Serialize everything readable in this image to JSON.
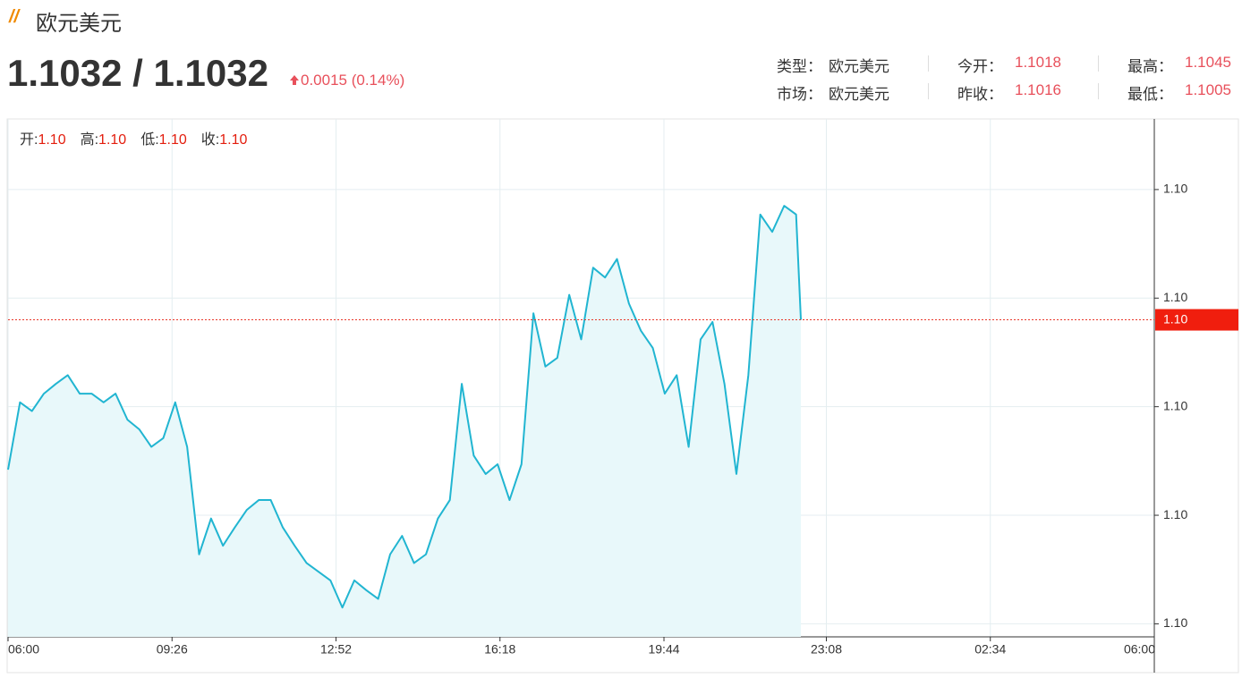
{
  "header": {
    "title": "欧元美元",
    "price": "1.1032 / 1.1032",
    "change": "0.0015 (0.14%)",
    "info": [
      [
        {
          "label": "类型：",
          "value": "欧元美元"
        },
        {
          "label": "今开：",
          "value": "1.1018"
        },
        {
          "label": "最高：",
          "value": "1.1045"
        }
      ],
      [
        {
          "label": "市场：",
          "value": "欧元美元"
        },
        {
          "label": "昨收：",
          "value": "1.1016"
        },
        {
          "label": "最低：",
          "value": "1.1005"
        }
      ]
    ]
  },
  "ohlc": [
    {
      "label": "开:",
      "value": "1.10"
    },
    {
      "label": "高:",
      "value": "1.10"
    },
    {
      "label": "低:",
      "value": "1.10"
    },
    {
      "label": "收:",
      "value": "1.10"
    }
  ],
  "chart_data": {
    "type": "area",
    "color": "#21b5d1",
    "fill": "#e8f8fa",
    "grid": true,
    "x": [
      "06:00",
      "06:15",
      "06:30",
      "06:45",
      "07:00",
      "07:15",
      "07:30",
      "07:45",
      "08:00",
      "08:15",
      "08:30",
      "08:45",
      "09:00",
      "09:15",
      "09:30",
      "09:45",
      "10:00",
      "10:15",
      "10:30",
      "10:45",
      "11:00",
      "11:15",
      "11:30",
      "11:45",
      "12:00",
      "12:15",
      "12:30",
      "12:45",
      "13:00",
      "13:15",
      "13:30",
      "13:45",
      "14:00",
      "14:15",
      "14:30",
      "14:45",
      "15:00",
      "15:15",
      "15:30",
      "15:45",
      "16:00",
      "16:15",
      "16:30",
      "16:45",
      "17:00",
      "17:15",
      "17:30",
      "17:45",
      "18:00",
      "18:15",
      "18:30",
      "18:45",
      "19:00",
      "19:15",
      "19:30",
      "19:45",
      "20:00",
      "20:15",
      "20:30",
      "20:45",
      "21:00",
      "21:15",
      "21:30",
      "21:45",
      "22:00",
      "22:15",
      "22:30",
      "22:36"
    ],
    "values": [
      1.10182,
      1.10244,
      1.10236,
      1.10252,
      1.10261,
      1.10269,
      1.10252,
      1.10252,
      1.10244,
      1.10252,
      1.10228,
      1.10219,
      1.10203,
      1.10211,
      1.10244,
      1.10203,
      1.10104,
      1.10137,
      1.10112,
      1.10129,
      1.10145,
      1.10154,
      1.10154,
      1.10129,
      1.10112,
      1.10096,
      1.10088,
      1.1008,
      1.10055,
      1.1008,
      1.10071,
      1.10063,
      1.10104,
      1.10121,
      1.10096,
      1.10104,
      1.10137,
      1.10154,
      1.10261,
      1.10195,
      1.10178,
      1.10187,
      1.10154,
      1.10187,
      1.10326,
      1.10277,
      1.10285,
      1.10343,
      1.10302,
      1.10368,
      1.10359,
      1.10376,
      1.10335,
      1.1031,
      1.10294,
      1.10252,
      1.10269,
      1.10203,
      1.10302,
      1.10318,
      1.10261,
      1.10178,
      1.10269,
      1.10417,
      1.10401,
      1.10425,
      1.10417,
      1.1032
    ],
    "xticks": [
      "06:00",
      "09:26",
      "12:52",
      "16:18",
      "19:44",
      "23:08",
      "02:34",
      "06:00"
    ],
    "ylim": [
      1.10028,
      1.10505
    ],
    "yticks": [
      {
        "value": 1.1004,
        "label": "1.10"
      },
      {
        "value": 1.1014,
        "label": "1.10"
      },
      {
        "value": 1.1024,
        "label": "1.10"
      },
      {
        "value": 1.1034,
        "label": "1.10"
      },
      {
        "value": 1.1044,
        "label": "1.10"
      }
    ],
    "current_price": {
      "value": 1.1032,
      "label": "1.10"
    }
  }
}
